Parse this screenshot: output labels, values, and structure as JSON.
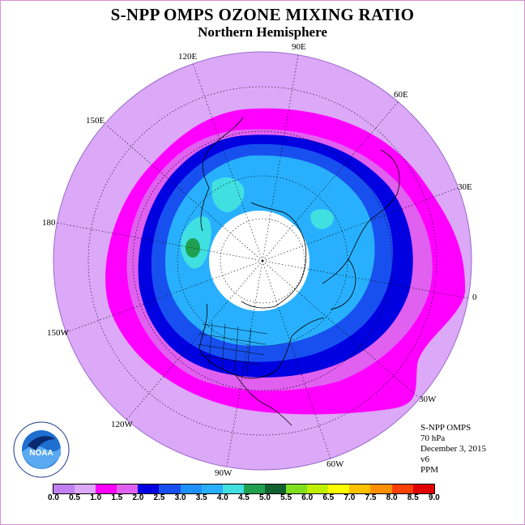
{
  "title": "S-NPP OMPS OZONE MIXING RATIO",
  "subtitle": "Northern Hemisphere",
  "longitude_labels": {
    "lon_90e": "90E",
    "lon_60e": "60E",
    "lon_30e": "30E",
    "lon_0": "0",
    "lon_30w": "30W",
    "lon_60w": "60W",
    "lon_90w": "90W",
    "lon_120w": "120W",
    "lon_150w": "150W",
    "lon_180": "180",
    "lon_150e": "150E",
    "lon_120e": "120E"
  },
  "info": {
    "instrument": "S-NPP OMPS",
    "pressure": "70 hPa",
    "date": "December 3, 2015",
    "version": "v6",
    "units": "PPM"
  },
  "logo_text": "NOAA",
  "colorbar": {
    "ticks": [
      "0.0",
      "0.5",
      "1.0",
      "1.5",
      "2.0",
      "2.5",
      "3.0",
      "3.5",
      "4.0",
      "4.5",
      "5.0",
      "5.5",
      "6.0",
      "6.5",
      "7.0",
      "7.5",
      "8.0",
      "8.5",
      "9.0"
    ],
    "colors": [
      "#c080f0",
      "#dca8f8",
      "#ff00ff",
      "#e060f0",
      "#0000e0",
      "#1850f0",
      "#1e90ff",
      "#28b0ff",
      "#40e0e0",
      "#20a050",
      "#106030",
      "#80e020",
      "#c0f000",
      "#ffff00",
      "#ffc000",
      "#ff9000",
      "#ff4000",
      "#e00000",
      "#8b5a2b"
    ]
  },
  "map": {
    "projection": "north polar stereographic",
    "no_data_region": "polar night (white, no retrieval)"
  }
}
